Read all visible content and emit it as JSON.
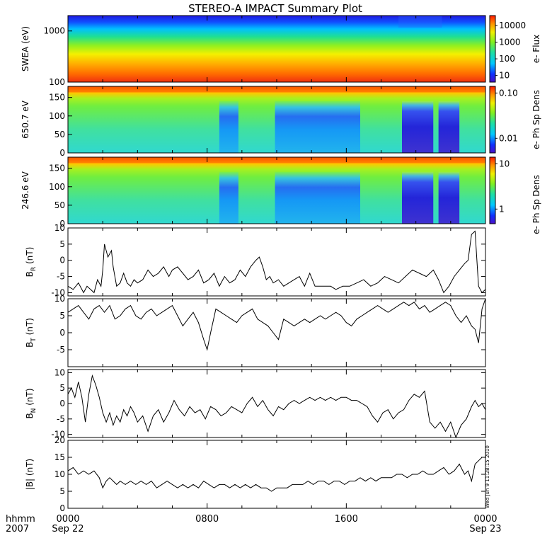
{
  "title": "STEREO-A IMPACT Summary Plot",
  "footer": {
    "row1_label": "hhmm",
    "row2_label": "2007",
    "ticks": [
      {
        "hour": 0,
        "time": "0000",
        "date": "Sep 22"
      },
      {
        "hour": 8,
        "time": "0800",
        "date": ""
      },
      {
        "hour": 16,
        "time": "1600",
        "date": ""
      },
      {
        "hour": 24,
        "time": "0000",
        "date": "Sep 23"
      }
    ]
  },
  "timestamp": "Wed Jun  9 11:28:15 2010",
  "chart_data": [
    {
      "type": "heatmap",
      "ylabel": "SWEA (eV)",
      "yscale": "log",
      "ylim": [
        100,
        2000
      ],
      "yticks": [
        100,
        1000
      ],
      "ytick_labels": [
        "100",
        "1000"
      ],
      "colorbar": {
        "label": "e- Flux",
        "scale": "log",
        "ticks": [
          "10",
          "100",
          "1000",
          "10000"
        ]
      },
      "description_rows": "flux decreasing with energy; red below ~200 eV, yellow-green ~400-800 eV, blue above ~1500 eV"
    },
    {
      "type": "heatmap",
      "ylabel": "650.7 eV",
      "ylim": [
        0,
        180
      ],
      "yticks": [
        0,
        50,
        100,
        150
      ],
      "colorbar": {
        "label": "e- Ph Sp Dens",
        "scale": "log",
        "ticks": [
          "0.01",
          "0.10"
        ]
      },
      "depletions": [
        {
          "start_hour": 8.7,
          "end_hour": 9.8
        },
        {
          "start_hour": 11.9,
          "end_hour": 16.8
        },
        {
          "start_hour": 19.2,
          "end_hour": 21.0
        },
        {
          "start_hour": 21.3,
          "end_hour": 22.5
        }
      ]
    },
    {
      "type": "heatmap",
      "ylabel": "246.6 eV",
      "ylim": [
        0,
        180
      ],
      "yticks": [
        0,
        50,
        100,
        150
      ],
      "colorbar": {
        "label": "e- Ph Sp Dens",
        "scale": "log",
        "ticks": [
          "1",
          "10"
        ]
      },
      "depletions": [
        {
          "start_hour": 8.7,
          "end_hour": 9.8
        },
        {
          "start_hour": 11.9,
          "end_hour": 16.8
        },
        {
          "start_hour": 19.2,
          "end_hour": 21.0
        },
        {
          "start_hour": 21.3,
          "end_hour": 22.5
        }
      ]
    },
    {
      "type": "line",
      "ylabel": "B",
      "ylabel_sub": "R",
      "ylabel_unit": " (nT)",
      "ylim": [
        -11,
        10
      ],
      "yticks": [
        -10,
        -5,
        0,
        5,
        10
      ],
      "x_hours": [
        0,
        0.3,
        0.6,
        0.9,
        1.1,
        1.3,
        1.5,
        1.7,
        1.9,
        2.0,
        2.1,
        2.3,
        2.5,
        2.6,
        2.8,
        3.0,
        3.2,
        3.4,
        3.6,
        3.8,
        4.0,
        4.3,
        4.6,
        4.9,
        5.2,
        5.5,
        5.8,
        6.0,
        6.3,
        6.6,
        6.9,
        7.2,
        7.5,
        7.8,
        8.1,
        8.4,
        8.7,
        9.0,
        9.3,
        9.6,
        9.9,
        10.2,
        10.5,
        10.8,
        11.0,
        11.2,
        11.4,
        11.6,
        11.8,
        12.1,
        12.4,
        12.7,
        13.0,
        13.3,
        13.6,
        13.9,
        14.2,
        14.5,
        14.8,
        15.1,
        15.4,
        15.8,
        16.2,
        16.6,
        17.0,
        17.4,
        17.8,
        18.2,
        18.6,
        19.0,
        19.4,
        19.8,
        20.2,
        20.6,
        21.0,
        21.3,
        21.6,
        21.9,
        22.2,
        22.5,
        22.8,
        23.0,
        23.2,
        23.4,
        23.6,
        23.8,
        24.0
      ],
      "values": [
        -8,
        -9,
        -7,
        -10,
        -8,
        -9,
        -10,
        -6,
        -8,
        -3,
        5,
        1,
        3,
        -2,
        -8,
        -7,
        -4,
        -7,
        -8,
        -6,
        -7,
        -6,
        -3,
        -5,
        -4,
        -2,
        -5,
        -3,
        -2,
        -4,
        -6,
        -5,
        -3,
        -7,
        -6,
        -4,
        -8,
        -5,
        -7,
        -6,
        -3,
        -5,
        -2,
        0,
        1,
        -2,
        -6,
        -5,
        -7,
        -6,
        -8,
        -7,
        -6,
        -5,
        -8,
        -4,
        -8,
        -8,
        -8,
        -8,
        -9,
        -8,
        -8,
        -7,
        -6,
        -8,
        -7,
        -5,
        -6,
        -7,
        -5,
        -3,
        -4,
        -5,
        -3,
        -6,
        -10,
        -8,
        -5,
        -3,
        -1,
        0,
        8,
        9,
        -8,
        -10,
        -9
      ]
    },
    {
      "type": "line",
      "ylabel": "B",
      "ylabel_sub": "T",
      "ylabel_unit": " (nT)",
      "ylim": [
        -10,
        10
      ],
      "yticks": [
        -5,
        0,
        5,
        10
      ],
      "x_hours": [
        0,
        0.3,
        0.6,
        0.9,
        1.2,
        1.5,
        1.8,
        2.1,
        2.4,
        2.7,
        3.0,
        3.3,
        3.6,
        3.9,
        4.2,
        4.5,
        4.8,
        5.1,
        5.4,
        5.7,
        6.0,
        6.3,
        6.6,
        6.9,
        7.2,
        7.5,
        7.8,
        8.0,
        8.2,
        8.5,
        8.8,
        9.1,
        9.4,
        9.7,
        10.0,
        10.3,
        10.6,
        10.9,
        11.2,
        11.5,
        11.8,
        12.1,
        12.4,
        12.7,
        13.0,
        13.3,
        13.6,
        13.9,
        14.2,
        14.5,
        14.8,
        15.1,
        15.4,
        15.7,
        16.0,
        16.3,
        16.6,
        16.9,
        17.2,
        17.5,
        17.8,
        18.1,
        18.4,
        18.7,
        19.0,
        19.3,
        19.6,
        19.9,
        20.2,
        20.5,
        20.8,
        21.1,
        21.4,
        21.7,
        22.0,
        22.3,
        22.6,
        22.9,
        23.2,
        23.4,
        23.6,
        23.8,
        24.0
      ],
      "values": [
        6,
        7,
        8,
        6,
        4,
        7,
        8,
        6,
        8,
        4,
        5,
        7,
        8,
        5,
        4,
        6,
        7,
        5,
        6,
        7,
        8,
        5,
        2,
        4,
        6,
        3,
        -2,
        -5,
        0,
        7,
        6,
        5,
        4,
        3,
        5,
        6,
        7,
        4,
        3,
        2,
        0,
        -2,
        4,
        3,
        2,
        3,
        4,
        3,
        4,
        5,
        4,
        5,
        6,
        5,
        3,
        2,
        4,
        5,
        6,
        7,
        8,
        7,
        6,
        7,
        8,
        9,
        8,
        9,
        7,
        8,
        6,
        7,
        8,
        9,
        8,
        5,
        3,
        5,
        2,
        1,
        -3,
        7,
        10
      ]
    },
    {
      "type": "line",
      "ylabel": "B",
      "ylabel_sub": "N",
      "ylabel_unit": " (nT)",
      "ylim": [
        -11,
        11
      ],
      "yticks": [
        -10,
        -5,
        0,
        5,
        10
      ],
      "x_hours": [
        0,
        0.2,
        0.4,
        0.6,
        0.8,
        1.0,
        1.2,
        1.4,
        1.6,
        1.8,
        2.0,
        2.2,
        2.4,
        2.6,
        2.8,
        3.0,
        3.2,
        3.4,
        3.6,
        3.8,
        4.0,
        4.3,
        4.6,
        4.9,
        5.2,
        5.5,
        5.8,
        6.1,
        6.4,
        6.7,
        7.0,
        7.3,
        7.6,
        7.9,
        8.2,
        8.5,
        8.8,
        9.1,
        9.4,
        9.7,
        10.0,
        10.3,
        10.6,
        10.9,
        11.2,
        11.5,
        11.8,
        12.1,
        12.4,
        12.7,
        13.0,
        13.3,
        13.6,
        13.9,
        14.2,
        14.5,
        14.8,
        15.1,
        15.4,
        15.7,
        16.0,
        16.3,
        16.6,
        16.9,
        17.2,
        17.5,
        17.8,
        18.1,
        18.4,
        18.7,
        19.0,
        19.3,
        19.6,
        19.9,
        20.2,
        20.5,
        20.8,
        21.1,
        21.4,
        21.7,
        22.0,
        22.3,
        22.6,
        22.9,
        23.2,
        23.4,
        23.6,
        23.8,
        24.0
      ],
      "values": [
        3,
        5,
        2,
        7,
        2,
        -6,
        3,
        9,
        6,
        2,
        -3,
        -6,
        -3,
        -7,
        -4,
        -6,
        -2,
        -4,
        -1,
        -3,
        -6,
        -4,
        -9,
        -4,
        -2,
        -6,
        -3,
        1,
        -2,
        -4,
        -1,
        -3,
        -2,
        -5,
        -1,
        -2,
        -4,
        -3,
        -1,
        -2,
        -3,
        0,
        2,
        -1,
        1,
        -2,
        -4,
        -1,
        -2,
        0,
        1,
        0,
        1,
        2,
        1,
        2,
        1,
        2,
        1,
        2,
        2,
        1,
        1,
        0,
        -1,
        -4,
        -6,
        -3,
        -2,
        -5,
        -3,
        -2,
        1,
        3,
        2,
        4,
        -6,
        -8,
        -6,
        -9,
        -6,
        -11,
        -7,
        -5,
        -1,
        1,
        -1,
        0,
        -2
      ]
    },
    {
      "type": "line",
      "ylabel": "|B|",
      "ylabel_sub": "",
      "ylabel_unit": " (nT)",
      "ylim": [
        0,
        20
      ],
      "yticks": [
        0,
        5,
        10,
        15,
        20
      ],
      "x_hours": [
        0,
        0.3,
        0.6,
        0.9,
        1.2,
        1.5,
        1.8,
        2.0,
        2.2,
        2.4,
        2.6,
        2.8,
        3.0,
        3.3,
        3.6,
        3.9,
        4.2,
        4.5,
        4.8,
        5.1,
        5.4,
        5.7,
        6.0,
        6.3,
        6.6,
        6.9,
        7.2,
        7.5,
        7.8,
        8.1,
        8.4,
        8.7,
        9.0,
        9.3,
        9.6,
        9.9,
        10.2,
        10.5,
        10.8,
        11.1,
        11.4,
        11.7,
        12.0,
        12.3,
        12.6,
        12.9,
        13.2,
        13.5,
        13.8,
        14.1,
        14.4,
        14.7,
        15.0,
        15.3,
        15.6,
        15.9,
        16.2,
        16.5,
        16.8,
        17.1,
        17.4,
        17.7,
        18.0,
        18.3,
        18.6,
        18.9,
        19.2,
        19.5,
        19.8,
        20.1,
        20.4,
        20.7,
        21.0,
        21.3,
        21.6,
        21.9,
        22.2,
        22.5,
        22.8,
        23.0,
        23.2,
        23.4,
        23.6,
        23.8,
        24.0
      ],
      "values": [
        11,
        12,
        10,
        11,
        10,
        11,
        9,
        6,
        8,
        9,
        8,
        7,
        8,
        7,
        8,
        7,
        8,
        7,
        8,
        6,
        7,
        8,
        7,
        6,
        7,
        6,
        7,
        6,
        8,
        7,
        6,
        7,
        7,
        6,
        7,
        6,
        7,
        6,
        7,
        6,
        6,
        5,
        6,
        6,
        6,
        7,
        7,
        7,
        8,
        7,
        8,
        8,
        7,
        8,
        8,
        7,
        8,
        8,
        9,
        8,
        9,
        8,
        9,
        9,
        9,
        10,
        10,
        9,
        10,
        10,
        11,
        10,
        10,
        11,
        12,
        10,
        11,
        13,
        10,
        11,
        8,
        13,
        14,
        15,
        15
      ]
    }
  ]
}
